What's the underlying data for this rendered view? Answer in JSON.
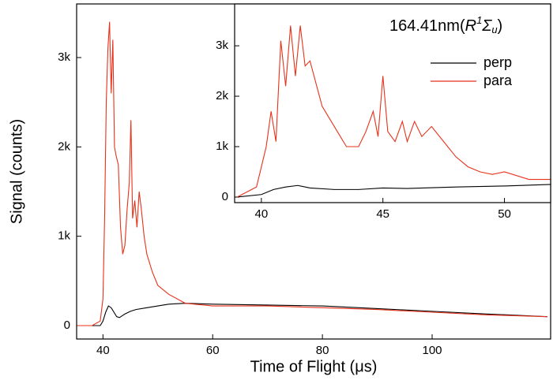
{
  "chart_data": [
    {
      "type": "line",
      "x_label": "Time of Flight (μs)",
      "y_label": "Signal (counts)",
      "xlim": [
        35.2,
        121.6
      ],
      "ylim": [
        -150,
        3600
      ],
      "xticks": [
        40,
        60,
        80,
        100
      ],
      "yticks": [
        0,
        {
          "value": 1000,
          "label": "1k"
        },
        {
          "value": 2000,
          "label": "2k"
        },
        {
          "value": 3000,
          "label": "3k"
        }
      ],
      "series": [
        {
          "name": "perp",
          "color": "#000000",
          "x": [
            35,
            38,
            39.5,
            40,
            40.5,
            41,
            41.5,
            42,
            42.5,
            43,
            43.5,
            44,
            45,
            46,
            48,
            50,
            52,
            55,
            60,
            70,
            80,
            90,
            100,
            110,
            121
          ],
          "values": [
            0,
            0,
            0,
            50,
            150,
            220,
            200,
            150,
            100,
            90,
            110,
            130,
            160,
            180,
            200,
            220,
            240,
            250,
            240,
            230,
            220,
            190,
            160,
            130,
            100
          ]
        },
        {
          "name": "para",
          "color": "#e8311a",
          "x": [
            35,
            38,
            39.5,
            40,
            40.3,
            40.6,
            40.9,
            41.2,
            41.5,
            41.8,
            42.1,
            42.4,
            42.8,
            43.2,
            43.6,
            44,
            44.4,
            44.8,
            45.1,
            45.4,
            45.8,
            46.2,
            46.6,
            47,
            47.5,
            48,
            49,
            50,
            52,
            55,
            60,
            65,
            70,
            80,
            90,
            100,
            110,
            121
          ],
          "values": [
            0,
            0,
            50,
            300,
            1200,
            2500,
            3100,
            3400,
            2600,
            3200,
            2000,
            1900,
            1800,
            1100,
            800,
            900,
            1300,
            1600,
            2300,
            1200,
            1400,
            1100,
            1500,
            1300,
            1000,
            800,
            600,
            450,
            350,
            250,
            220,
            220,
            220,
            200,
            180,
            150,
            120,
            100
          ]
        }
      ]
    },
    {
      "type": "line",
      "title_parts": [
        "164.41nm(",
        "R",
        "1",
        "Σ",
        "u",
        ")"
      ],
      "xlim": [
        38.9,
        51.9
      ],
      "ylim": [
        -110,
        3830
      ],
      "xticks": [
        40,
        45,
        50
      ],
      "yticks": [
        0,
        {
          "value": 1000,
          "label": "1k"
        },
        {
          "value": 2000,
          "label": "2k"
        },
        {
          "value": 3000,
          "label": "3k"
        }
      ],
      "series": [
        {
          "name": "perp",
          "color": "#000000",
          "x": [
            39,
            40,
            40.5,
            41,
            41.5,
            42,
            43,
            44,
            45,
            46,
            48,
            50,
            51.9
          ],
          "values": [
            0,
            50,
            150,
            200,
            230,
            180,
            150,
            150,
            180,
            170,
            200,
            220,
            250
          ]
        },
        {
          "name": "para",
          "color": "#e8311a",
          "x": [
            39,
            39.8,
            40,
            40.2,
            40.4,
            40.6,
            40.8,
            41,
            41.2,
            41.4,
            41.6,
            41.8,
            42,
            42.5,
            43,
            43.5,
            44,
            44.3,
            44.6,
            44.8,
            45,
            45.2,
            45.5,
            45.8,
            46,
            46.3,
            46.6,
            47,
            47.5,
            48,
            48.5,
            49,
            49.5,
            50,
            51,
            51.9
          ],
          "values": [
            0,
            200,
            600,
            1000,
            1700,
            1100,
            3100,
            2200,
            3400,
            2400,
            3400,
            2600,
            2700,
            1800,
            1400,
            1000,
            1000,
            1300,
            1700,
            1200,
            2400,
            1300,
            1100,
            1500,
            1100,
            1500,
            1200,
            1400,
            1100,
            800,
            600,
            500,
            450,
            500,
            350,
            350
          ]
        }
      ]
    }
  ]
}
